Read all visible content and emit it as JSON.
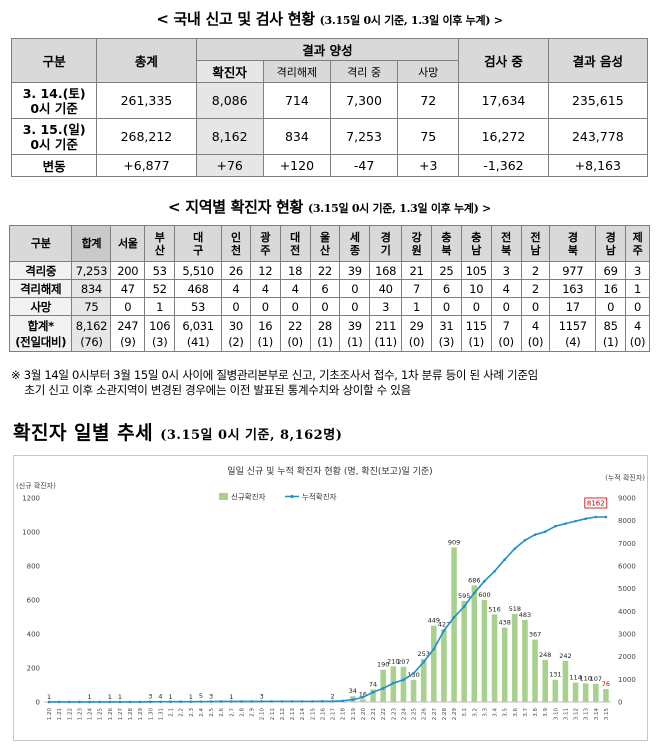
{
  "title1": {
    "main": "< 국내 신고 및 검사 현황",
    "sub": "(3.15일 0시 기준, 1.3일 이후 누계) >"
  },
  "table1": {
    "headers": {
      "category": "구분",
      "total": "총계",
      "positive": "결과 양성",
      "testing": "검사 중",
      "negative": "결과 음성"
    },
    "subheaders": [
      "확진자",
      "격리해제",
      "격리 중",
      "사망"
    ],
    "rows": [
      {
        "label": "3. 14.(토)\n0시 기준",
        "total": "261,335",
        "confirmed": "8,086",
        "released": "714",
        "isolated": "7,300",
        "deaths": "72",
        "testing": "17,634",
        "negative": "235,615"
      },
      {
        "label": "3. 15.(일)\n0시 기준",
        "total": "268,212",
        "confirmed": "8,162",
        "released": "834",
        "isolated": "7,253",
        "deaths": "75",
        "testing": "16,272",
        "negative": "243,778"
      },
      {
        "label": "변동",
        "total": "+6,877",
        "confirmed": "+76",
        "released": "+120",
        "isolated": "-47",
        "deaths": "+3",
        "testing": "-1,362",
        "negative": "+8,163"
      }
    ]
  },
  "title2": {
    "main": "< 지역별 확진자 현황",
    "sub": "(3.15일 0시 기준, 1.3일 이후 누계) >"
  },
  "table2": {
    "headers": [
      "구분",
      "합계",
      "서울",
      "부\n산",
      "대\n구",
      "인\n천",
      "광\n주",
      "대\n전",
      "울\n산",
      "세\n종",
      "경\n기",
      "강\n원",
      "충\n북",
      "충\n남",
      "전\n북",
      "전\n남",
      "경\n북",
      "경\n남",
      "제\n주"
    ],
    "rows": [
      {
        "label": "격리중",
        "values": [
          "7,253",
          "200",
          "53",
          "5,510",
          "26",
          "12",
          "18",
          "22",
          "39",
          "168",
          "21",
          "25",
          "105",
          "3",
          "2",
          "977",
          "69",
          "3"
        ]
      },
      {
        "label": "격리해제",
        "values": [
          "834",
          "47",
          "52",
          "468",
          "4",
          "4",
          "4",
          "6",
          "0",
          "40",
          "7",
          "6",
          "10",
          "4",
          "2",
          "163",
          "16",
          "1"
        ]
      },
      {
        "label": "사망",
        "values": [
          "75",
          "0",
          "1",
          "53",
          "0",
          "0",
          "0",
          "0",
          "0",
          "3",
          "1",
          "0",
          "0",
          "0",
          "0",
          "17",
          "0",
          "0"
        ]
      },
      {
        "label": "합계*\n(전일대비)",
        "values": [
          "8,162\n(76)",
          "247\n(9)",
          "106\n(3)",
          "6,031\n(41)",
          "30\n(2)",
          "16\n(1)",
          "22\n(0)",
          "28\n(1)",
          "39\n(1)",
          "211\n(11)",
          "29\n(0)",
          "31\n(3)",
          "115\n(1)",
          "7\n(0)",
          "4\n(0)",
          "1157\n(4)",
          "85\n(1)",
          "4\n(0)"
        ]
      }
    ]
  },
  "note": "※ 3월 14일 0시부터 3월 15일 0시 사이에 질병관리본부로 신고, 기초조사서 접수, 1차 분류 등이 된 사례 기준임\n    초기 신고 이후 소관지역이 변경된 경우에는 이전 발표된 통계수치와 상이할 수 있음",
  "section": {
    "main": "확진자 일별 추세",
    "sub": "(3.15일 0시 기준, 8,162명)"
  },
  "chart_data": {
    "type": "bar",
    "title": "일일 신규 및 누적 확진자 현황 (명, 확진(보고)일 기준)",
    "left_axis_label": "(신규 확진자)",
    "right_axis_label": "(누적 확진자)",
    "left_ylim": [
      0,
      1200
    ],
    "left_ticks": [
      "0",
      "200",
      "400",
      "600",
      "800",
      "1000",
      "1200"
    ],
    "right_ylim": [
      0,
      9000
    ],
    "right_ticks": [
      "0",
      "1000",
      "2000",
      "3000",
      "4000",
      "5000",
      "6000",
      "7000",
      "8000",
      "9000"
    ],
    "categories": [
      "1.20",
      "1.21",
      "1.22",
      "1.23",
      "1.24",
      "1.25",
      "1.26",
      "1.27",
      "1.28",
      "1.29",
      "1.30",
      "1.31",
      "2.1",
      "2.2",
      "2.3",
      "2.4",
      "2.5",
      "2.6",
      "2.7",
      "2.8",
      "2.9",
      "2.10",
      "2.11",
      "2.12",
      "2.13",
      "2.14",
      "2.15",
      "2.16",
      "2.17",
      "2.18",
      "2.19",
      "2.20",
      "2.21",
      "2.22",
      "2.23",
      "2.24",
      "2.25",
      "2.26",
      "2.27",
      "2.28",
      "2.29",
      "3.1",
      "3.2",
      "3.3",
      "3.4",
      "3.5",
      "3.6",
      "3.7",
      "3.8",
      "3.9",
      "3.10",
      "3.11",
      "3.12",
      "3.13",
      "3.14",
      "3.15"
    ],
    "series": [
      {
        "name": "신규확진자",
        "type": "bar",
        "color": "#a9d18e",
        "values": [
          1,
          0,
          0,
          0,
          1,
          0,
          1,
          1,
          0,
          0,
          3,
          4,
          1,
          0,
          1,
          5,
          3,
          0,
          1,
          0,
          0,
          3,
          0,
          0,
          0,
          0,
          0,
          0,
          2,
          1,
          34,
          16,
          74,
          190,
          210,
          207,
          130,
          253,
          449,
          427,
          909,
          595,
          686,
          600,
          516,
          438,
          518,
          483,
          367,
          248,
          131,
          242,
          114,
          110,
          107,
          76
        ],
        "labels": [
          "1",
          "",
          "",
          "",
          "1",
          "",
          "1",
          "1",
          "",
          "",
          "3",
          "4",
          "1",
          "",
          "1",
          "5",
          "3",
          "",
          "1",
          "",
          "",
          "3",
          "",
          "",
          "",
          "",
          "",
          "",
          "2",
          "",
          "34",
          "16",
          "74",
          "190",
          "210",
          "207",
          "130",
          "253",
          "449",
          "427",
          "909",
          "595",
          "686",
          "600",
          "516",
          "438",
          "518",
          "483",
          "367",
          "248",
          "131",
          "242",
          "114",
          "110",
          "107",
          "76"
        ]
      },
      {
        "name": "누적확진자",
        "type": "line",
        "color": "#1f8fc9",
        "values": [
          1,
          1,
          1,
          1,
          2,
          2,
          3,
          4,
          4,
          4,
          7,
          11,
          12,
          12,
          15,
          16,
          19,
          23,
          24,
          24,
          27,
          27,
          28,
          28,
          28,
          28,
          28,
          29,
          31,
          51,
          104,
          204,
          433,
          602,
          833,
          977,
          1261,
          1766,
          2337,
          3150,
          3736,
          4212,
          4812,
          5328,
          5766,
          6284,
          6767,
          7134,
          7382,
          7513,
          7755,
          7869,
          7979,
          8086,
          8162,
          8162
        ]
      }
    ],
    "highlight_label": "8162"
  }
}
